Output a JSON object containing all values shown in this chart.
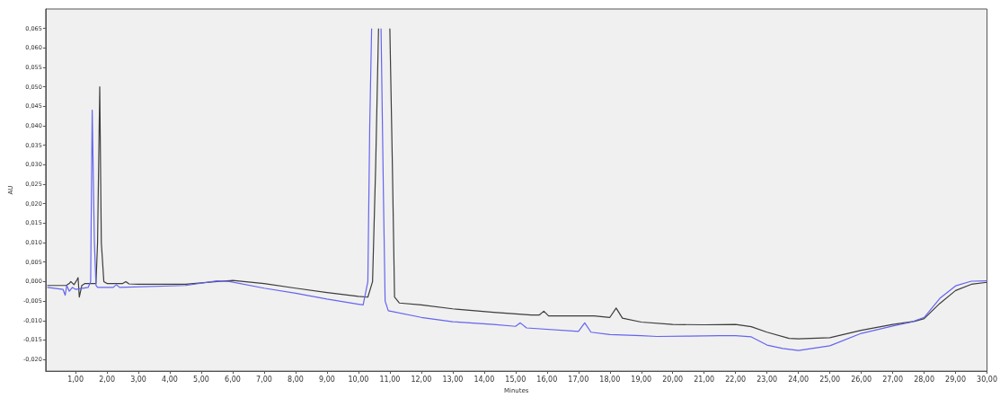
{
  "chart_data": {
    "type": "line",
    "xlabel": "Minutes",
    "ylabel": "AU",
    "xlim": [
      0.05,
      30
    ],
    "ylim": [
      -0.023,
      0.07
    ],
    "xticks": [
      {
        "value": 1,
        "label": "1,00"
      },
      {
        "value": 2,
        "label": "2,00"
      },
      {
        "value": 3,
        "label": "3,00"
      },
      {
        "value": 4,
        "label": "4,00"
      },
      {
        "value": 5,
        "label": "5,00"
      },
      {
        "value": 6,
        "label": "6,00"
      },
      {
        "value": 7,
        "label": "7,00"
      },
      {
        "value": 8,
        "label": "8,00"
      },
      {
        "value": 9,
        "label": "9,00"
      },
      {
        "value": 10,
        "label": "10,00"
      },
      {
        "value": 11,
        "label": "11,00"
      },
      {
        "value": 12,
        "label": "12,00"
      },
      {
        "value": 13,
        "label": "13,00"
      },
      {
        "value": 14,
        "label": "14,00"
      },
      {
        "value": 15,
        "label": "15,00"
      },
      {
        "value": 16,
        "label": "16,00"
      },
      {
        "value": 17,
        "label": "17,00"
      },
      {
        "value": 18,
        "label": "18,00"
      },
      {
        "value": 19,
        "label": "19,00"
      },
      {
        "value": 20,
        "label": "20,00"
      },
      {
        "value": 21,
        "label": "21,00"
      },
      {
        "value": 22,
        "label": "22,00"
      },
      {
        "value": 23,
        "label": "23,00"
      },
      {
        "value": 24,
        "label": "24,00"
      },
      {
        "value": 25,
        "label": "25,00"
      },
      {
        "value": 26,
        "label": "26,00"
      },
      {
        "value": 27,
        "label": "27,00"
      },
      {
        "value": 28,
        "label": "28,00"
      },
      {
        "value": 29,
        "label": "29,00"
      },
      {
        "value": 30,
        "label": "30,00"
      }
    ],
    "yticks": [
      {
        "value": -0.02,
        "label": "-0,020"
      },
      {
        "value": -0.015,
        "label": "-0,015"
      },
      {
        "value": -0.01,
        "label": "-0,010"
      },
      {
        "value": -0.005,
        "label": "-0,005"
      },
      {
        "value": 0,
        "label": "0,000"
      },
      {
        "value": 0.005,
        "label": "0,005"
      },
      {
        "value": 0.01,
        "label": "0,010"
      },
      {
        "value": 0.015,
        "label": "0,015"
      },
      {
        "value": 0.02,
        "label": "0,020"
      },
      {
        "value": 0.025,
        "label": "0,025"
      },
      {
        "value": 0.03,
        "label": "0,030"
      },
      {
        "value": 0.035,
        "label": "0,035"
      },
      {
        "value": 0.04,
        "label": "0,040"
      },
      {
        "value": 0.045,
        "label": "0,045"
      },
      {
        "value": 0.05,
        "label": "0,050"
      },
      {
        "value": 0.055,
        "label": "0,055"
      },
      {
        "value": 0.06,
        "label": "0,060"
      },
      {
        "value": 0.065,
        "label": "0,065"
      }
    ],
    "grid": false,
    "marker": "none",
    "line_style": "solid",
    "series": [
      {
        "color": "#3c3c3c",
        "x": [
          0.1,
          0.7,
          0.8,
          0.85,
          0.95,
          1.05,
          1.08,
          1.12,
          1.2,
          1.3,
          1.65,
          1.7,
          1.77,
          1.82,
          1.9,
          2.0,
          2.5,
          2.6,
          2.7,
          3.0,
          4.5,
          5.5,
          6.0,
          7.0,
          8.0,
          9.0,
          10.0,
          10.3,
          10.45,
          10.55,
          10.64,
          10.8,
          11.0,
          11.08,
          11.15,
          11.3,
          12.0,
          13.0,
          14.3,
          15.5,
          15.75,
          15.9,
          16.05,
          16.5,
          17.5,
          18.0,
          18.2,
          18.4,
          19.0,
          20.0,
          21.0,
          22.0,
          22.5,
          23.0,
          23.7,
          24.0,
          25.0,
          26.0,
          27.0,
          27.7,
          28.0,
          28.5,
          29.0,
          29.5,
          30.0
        ],
        "values": [
          -0.001,
          -0.001,
          -0.0005,
          0.0,
          -0.0008,
          0.0005,
          0.001,
          -0.004,
          -0.001,
          -0.0005,
          -0.0005,
          0.01,
          0.05,
          0.01,
          0.0,
          -0.0005,
          -0.0005,
          0.0,
          -0.0006,
          -0.0007,
          -0.0007,
          0.0,
          0.0003,
          -0.0005,
          -0.0017,
          -0.0028,
          -0.0038,
          -0.004,
          0.0,
          0.03,
          0.065,
          null,
          0.065,
          0.03,
          -0.004,
          -0.0055,
          -0.006,
          -0.007,
          -0.0079,
          -0.0086,
          -0.0086,
          -0.0076,
          -0.0088,
          -0.0088,
          -0.0088,
          -0.0092,
          -0.0068,
          -0.0094,
          -0.0104,
          -0.011,
          -0.0111,
          -0.011,
          -0.0116,
          -0.013,
          -0.0146,
          -0.0147,
          -0.0144,
          -0.0125,
          -0.011,
          -0.0102,
          -0.0095,
          -0.0056,
          -0.0023,
          -0.0007,
          -0.0002
        ]
      },
      {
        "color": "#6464f0",
        "x": [
          0.1,
          0.6,
          0.67,
          0.72,
          0.8,
          0.9,
          1.0,
          1.4,
          1.48,
          1.53,
          1.6,
          1.65,
          1.7,
          2.2,
          2.3,
          2.4,
          4.5,
          5.5,
          5.9,
          7.0,
          8.0,
          9.0,
          10.0,
          10.15,
          10.3,
          10.36,
          10.42,
          10.57,
          10.72,
          10.8,
          10.85,
          10.95,
          12.0,
          13.0,
          14.3,
          15.0,
          15.15,
          15.35,
          17.0,
          17.2,
          17.4,
          18.0,
          19.0,
          19.5,
          20.5,
          21.5,
          22.0,
          22.5,
          23.0,
          23.5,
          24.0,
          25.0,
          26.0,
          27.0,
          27.6,
          28.0,
          28.5,
          29.0,
          29.5,
          30.0
        ],
        "values": [
          -0.0015,
          -0.002,
          -0.0035,
          -0.001,
          -0.0025,
          -0.0015,
          -0.002,
          -0.0015,
          0.0,
          0.044,
          0.01,
          -0.001,
          -0.0015,
          -0.0015,
          -0.0008,
          -0.0015,
          -0.001,
          0.0002,
          0.0,
          -0.0017,
          -0.003,
          -0.0045,
          -0.0058,
          -0.006,
          0.0,
          0.04,
          0.065,
          null,
          0.065,
          0.02,
          -0.005,
          -0.0075,
          -0.0092,
          -0.0103,
          -0.011,
          -0.0115,
          -0.0106,
          -0.0119,
          -0.0128,
          -0.0106,
          -0.013,
          -0.0136,
          -0.0139,
          -0.0141,
          -0.014,
          -0.0139,
          -0.0139,
          -0.0142,
          -0.0163,
          -0.0172,
          -0.0177,
          -0.0165,
          -0.0133,
          -0.0114,
          -0.0104,
          -0.0092,
          -0.0043,
          -0.0011,
          0.0001,
          0.0002
        ]
      }
    ]
  }
}
